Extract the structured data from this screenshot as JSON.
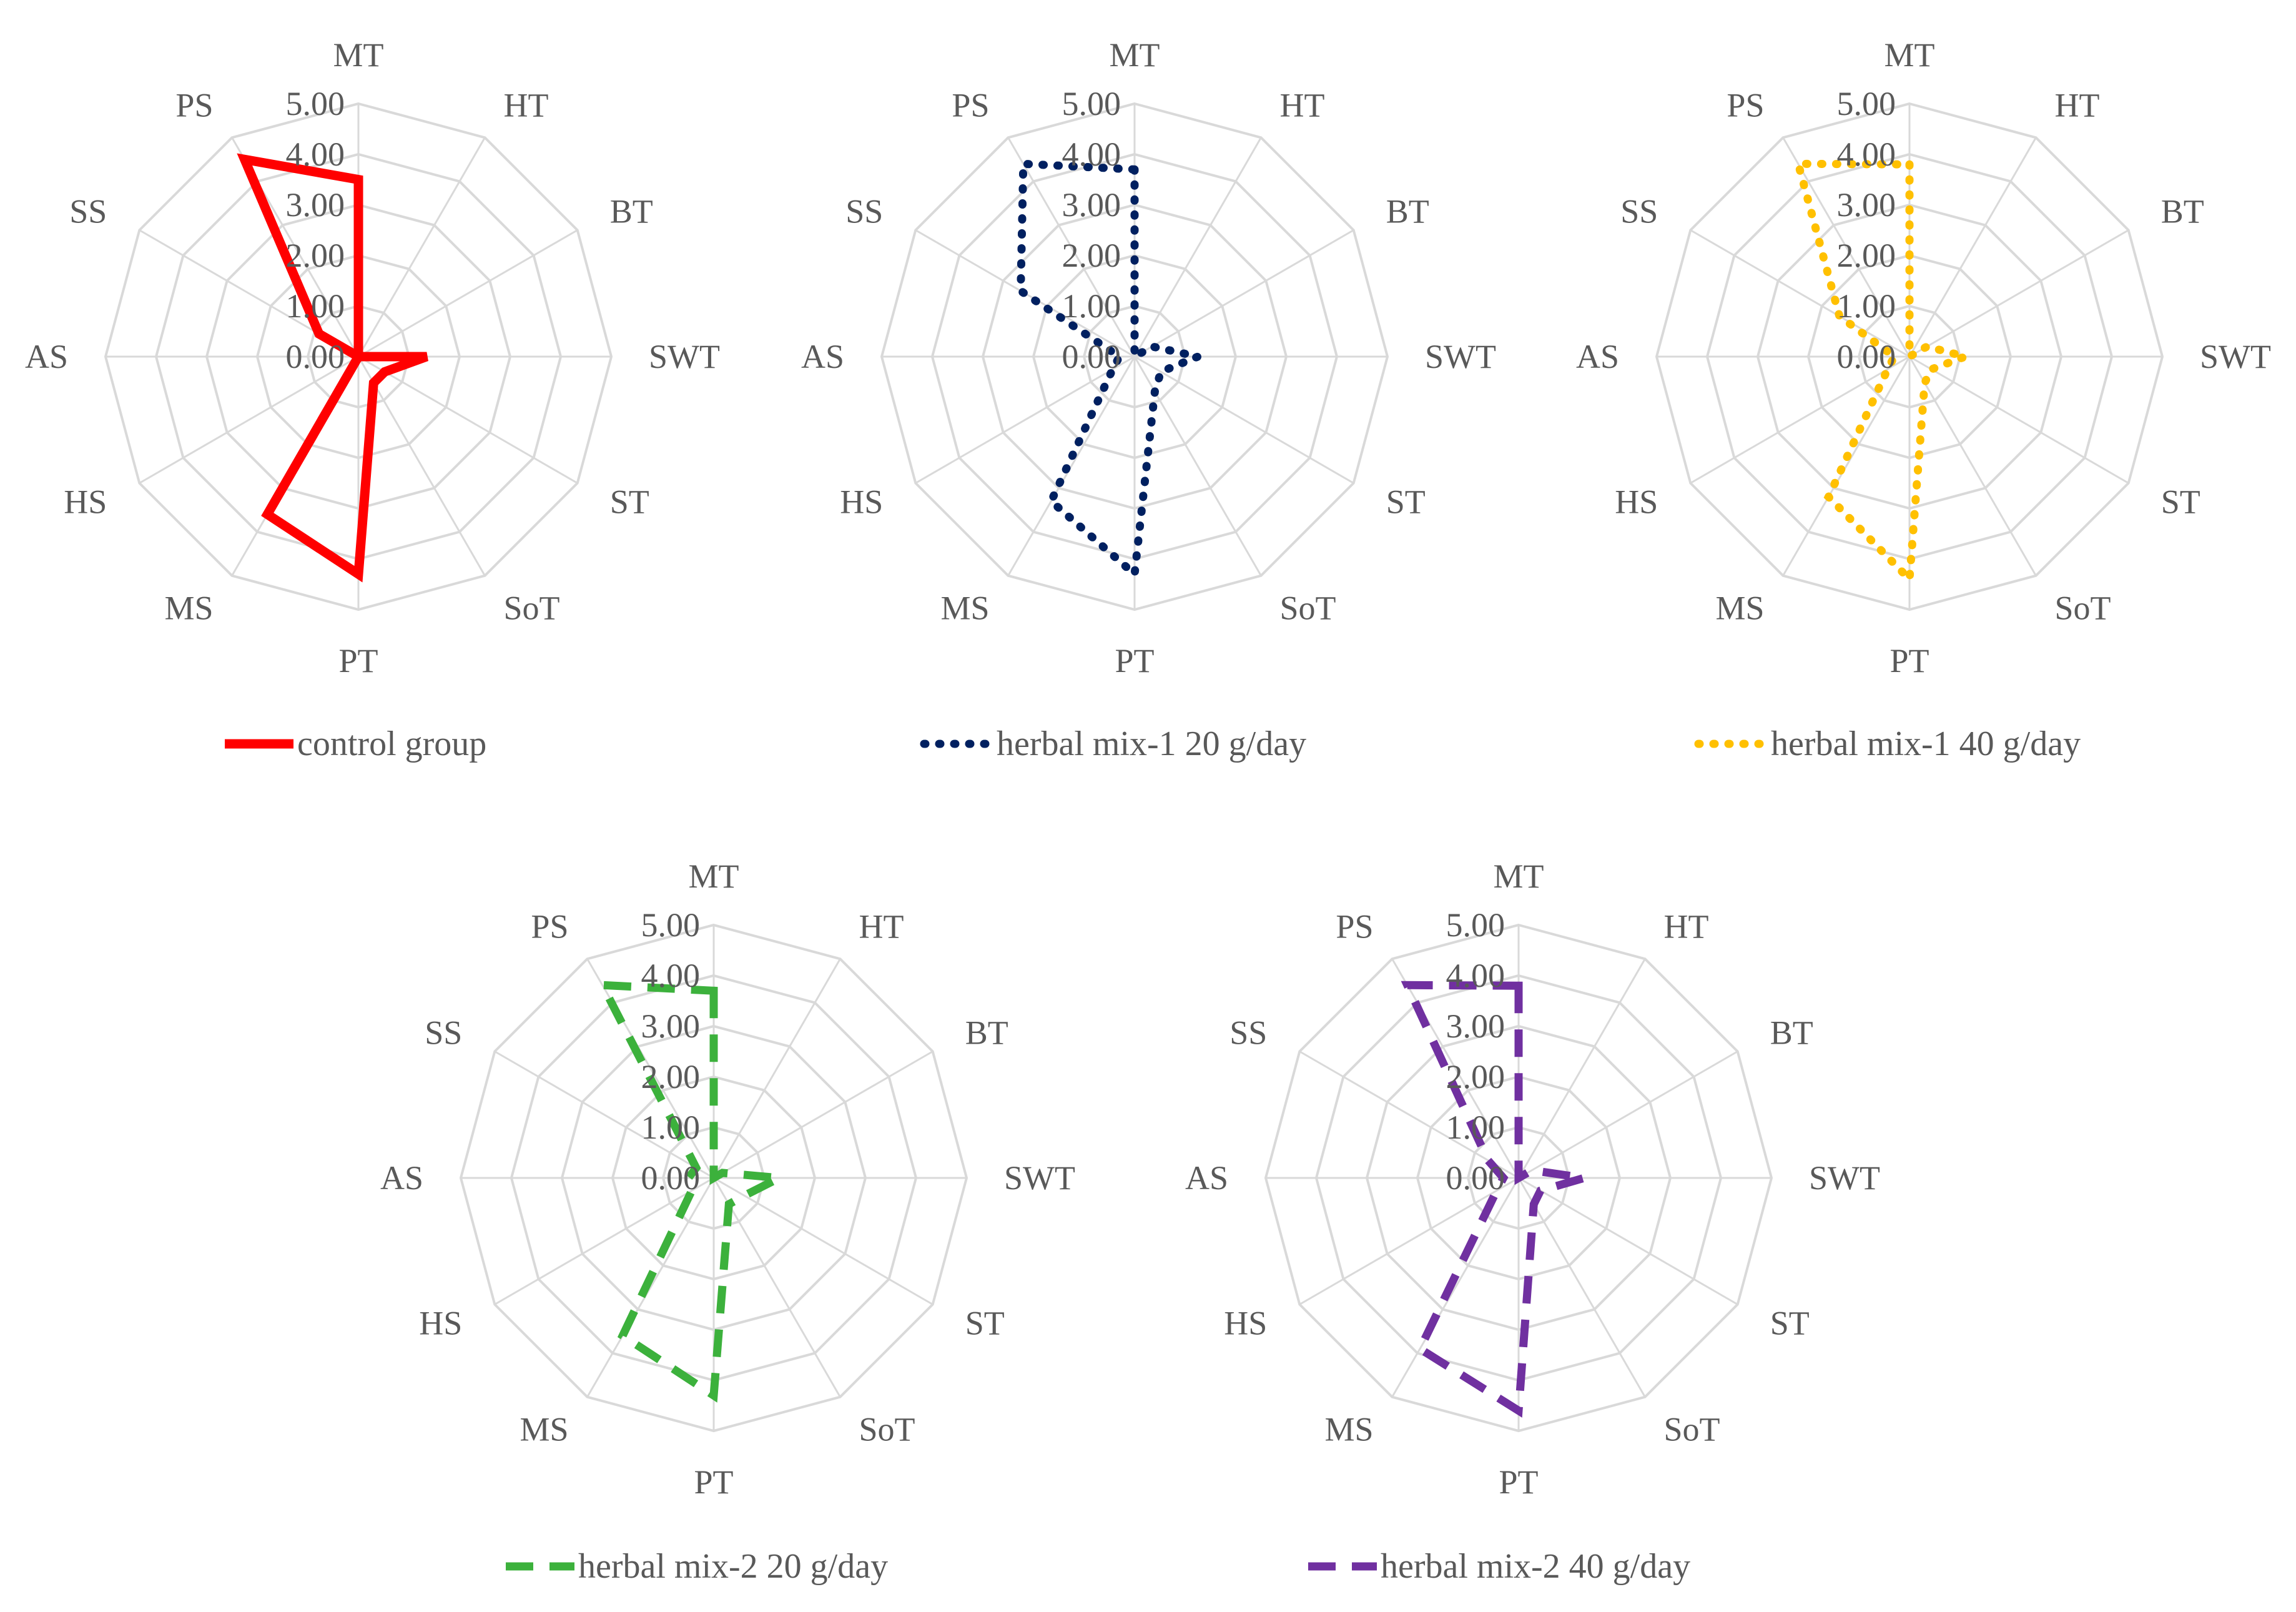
{
  "chart_data": [
    {
      "type": "radar",
      "series_name": "control group",
      "color": "#ff0000",
      "line_style": "solid",
      "axes": [
        "MT",
        "HT",
        "BT",
        "SWT",
        "ST",
        "SoT",
        "PT",
        "MS",
        "HS",
        "AS",
        "SS",
        "PS"
      ],
      "values": [
        3.5,
        0.0,
        0.0,
        1.35,
        0.6,
        0.6,
        4.3,
        3.6,
        0.0,
        0.0,
        0.9,
        4.5
      ],
      "r_ticks": [
        "0.00",
        "1.00",
        "2.00",
        "3.00",
        "4.00",
        "5.00"
      ],
      "rlim": [
        0,
        5
      ]
    },
    {
      "type": "radar",
      "series_name": "herbal mix-1 20 g/day",
      "color": "#002060",
      "line_style": "dotted",
      "axes": [
        "MT",
        "HT",
        "BT",
        "SWT",
        "ST",
        "SoT",
        "PT",
        "MS",
        "HS",
        "AS",
        "SS",
        "PS"
      ],
      "values": [
        3.7,
        0.0,
        0.4,
        1.25,
        0.6,
        0.8,
        4.3,
        3.3,
        0.5,
        0.3,
        2.6,
        4.4
      ],
      "r_ticks": [
        "0.00",
        "1.00",
        "2.00",
        "3.00",
        "4.00",
        "5.00"
      ],
      "rlim": [
        0,
        5
      ]
    },
    {
      "type": "radar",
      "series_name": "herbal mix-1 40 g/day",
      "color": "#ffc000",
      "line_style": "dotted",
      "axes": [
        "MT",
        "HT",
        "BT",
        "SWT",
        "ST",
        "SoT",
        "PT",
        "MS",
        "HS",
        "AS",
        "SS",
        "PS"
      ],
      "values": [
        3.8,
        0.0,
        0.4,
        1.1,
        0.5,
        0.6,
        4.4,
        3.2,
        0.5,
        0.3,
        1.6,
        4.4
      ],
      "r_ticks": [
        "0.00",
        "1.00",
        "2.00",
        "3.00",
        "4.00",
        "5.00"
      ],
      "rlim": [
        0,
        5
      ]
    },
    {
      "type": "radar",
      "series_name": "herbal mix-2 20 g/day",
      "color": "#3cb13c",
      "line_style": "dashed",
      "axes": [
        "MT",
        "HT",
        "BT",
        "SWT",
        "ST",
        "SoT",
        "PT",
        "MS",
        "HS",
        "AS",
        "SS",
        "PS"
      ],
      "values": [
        3.7,
        0.0,
        0.2,
        1.3,
        0.7,
        0.6,
        4.3,
        3.6,
        0.5,
        0.5,
        0.4,
        4.4
      ],
      "r_ticks": [
        "0.00",
        "1.00",
        "2.00",
        "3.00",
        "4.00",
        "5.00"
      ],
      "rlim": [
        0,
        5
      ]
    },
    {
      "type": "radar",
      "series_name": "herbal mix-2 40 g/day",
      "color": "#7030a0",
      "line_style": "dashed",
      "axes": [
        "MT",
        "HT",
        "BT",
        "SWT",
        "ST",
        "SoT",
        "PT",
        "MS",
        "HS",
        "AS",
        "SS",
        "PS"
      ],
      "values": [
        3.8,
        0.0,
        0.3,
        1.3,
        0.5,
        0.6,
        4.6,
        3.9,
        0.5,
        0.3,
        0.7,
        4.4
      ],
      "r_ticks": [
        "0.00",
        "1.00",
        "2.00",
        "3.00",
        "4.00",
        "5.00"
      ],
      "rlim": [
        0,
        5
      ]
    }
  ]
}
